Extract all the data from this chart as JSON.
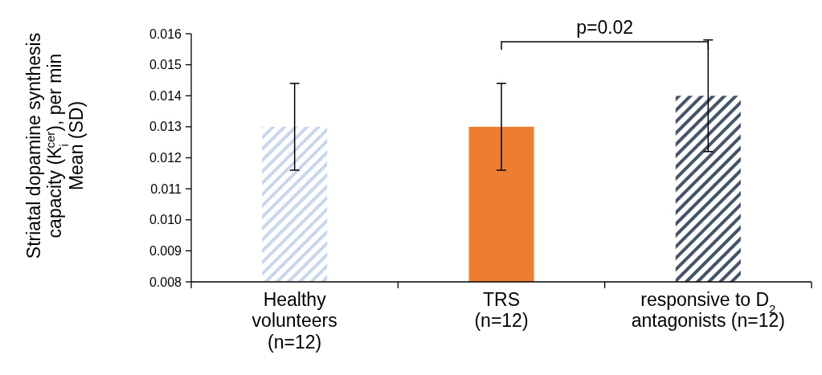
{
  "chart_data": {
    "type": "bar",
    "ylabel": "Striatal dopamine synthesis\ncapacity (K$_{i}$$^{cer}$), per min\nMean (SD)",
    "categories": [
      "Healthy\nvolunteers\n(n=12)",
      "TRS\n(n=12)",
      "responsive to D$_{2}$\nantagonists (n=12)"
    ],
    "values": [
      0.013,
      0.013,
      0.014
    ],
    "errors": [
      0.0014,
      0.0014,
      0.0018
    ],
    "colors": [
      "#c9d7ee",
      "#ed7d31",
      "#44546a"
    ],
    "ylim": [
      0.008,
      0.016
    ],
    "yticks": [
      {
        "value": 0.008,
        "label": "0.008"
      },
      {
        "value": 0.009,
        "label": "0.009"
      },
      {
        "value": 0.01,
        "label": "0.010"
      },
      {
        "value": 0.011,
        "label": "0.011"
      },
      {
        "value": 0.012,
        "label": "0.012"
      },
      {
        "value": 0.013,
        "label": "0.013"
      },
      {
        "value": 0.014,
        "label": "0.014"
      },
      {
        "value": 0.015,
        "label": "0.015"
      },
      {
        "value": 0.016,
        "label": "0.016"
      }
    ],
    "annotations": [
      "p=0.02"
    ],
    "grid": false
  }
}
